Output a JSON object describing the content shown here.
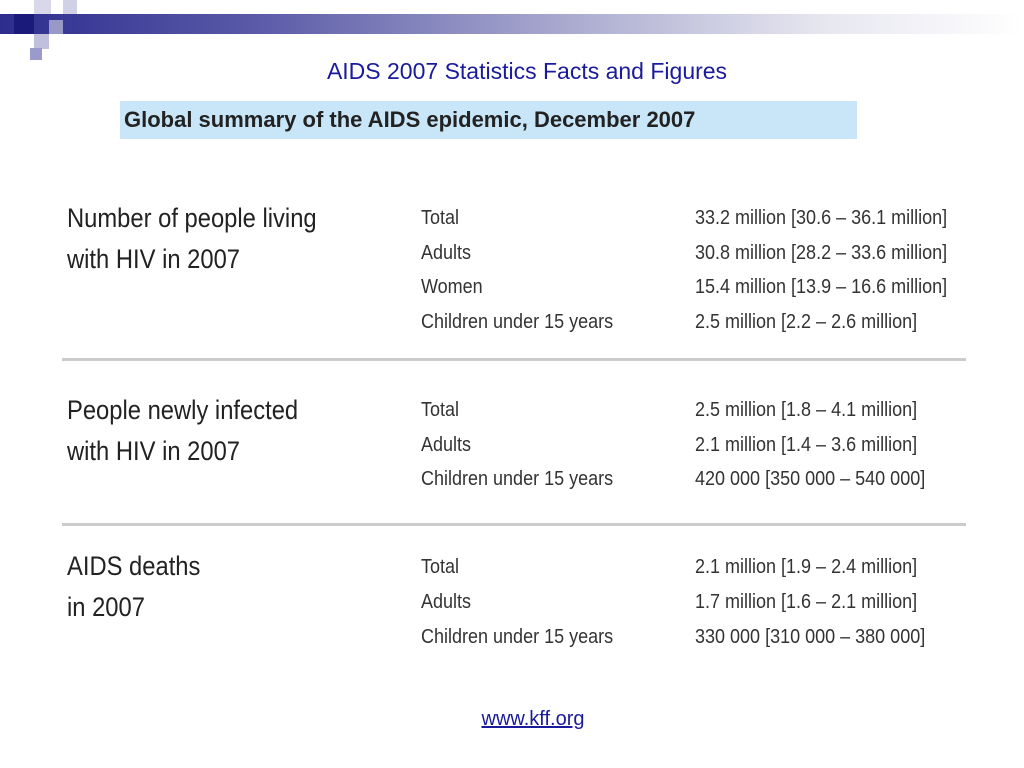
{
  "slide": {
    "title": "AIDS  2007 Statistics Facts and Figures",
    "banner": "Global summary of the AIDS epidemic, December 2007",
    "source_link": "www.kff.org"
  },
  "colors": {
    "title_text": "#1a1a9c",
    "banner_bg": "#c8e6f7",
    "header_dark": "#2d2d8f",
    "header_mid": "#8080c0",
    "divider": "#cccccc"
  },
  "groups": [
    {
      "label_line1": "Number of people living",
      "label_line2": "with HIV in 2007",
      "rows": [
        {
          "label": "Total",
          "value": "33.2 million [30.6 – 36.1 million]"
        },
        {
          "label": "Adults",
          "value": "30.8 million [28.2 – 33.6 million]"
        },
        {
          "label": "Women",
          "value": "15.4 million [13.9 – 16.6 million]"
        },
        {
          "label": "Children under 15 years",
          "value": "2.5 million [2.2 – 2.6 million]"
        }
      ]
    },
    {
      "label_line1": "People newly infected",
      "label_line2": "with HIV in 2007",
      "rows": [
        {
          "label": "Total",
          "value": "2.5 million [1.8 – 4.1 million]"
        },
        {
          "label": "Adults",
          "value": "2.1 million [1.4 – 3.6 million]"
        },
        {
          "label": "Children under 15 years",
          "value": "420 000 [350 000 – 540 000]"
        }
      ]
    },
    {
      "label_line1": "AIDS deaths",
      "label_line2": "in 2007",
      "rows": [
        {
          "label": "Total",
          "value": "2.1 million [1.9 – 2.4 million]"
        },
        {
          "label": "Adults",
          "value": "1.7 million [1.6 – 2.1 million]"
        },
        {
          "label": "Children under 15 years",
          "value": "330 000 [310 000 – 380 000]"
        }
      ]
    }
  ]
}
